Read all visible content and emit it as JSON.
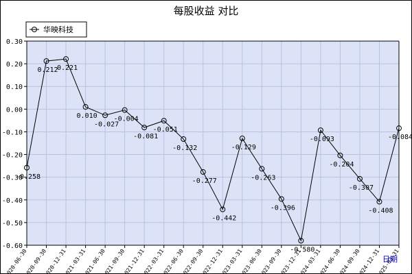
{
  "chart_data": {
    "type": "line",
    "title": "每股收益 对比",
    "xlabel": "日期",
    "ylabel": "",
    "ylim": [
      -0.6,
      0.3
    ],
    "yticks": [
      "0.30",
      "0.20",
      "0.10",
      "0.00",
      "-0.10",
      "-0.20",
      "-0.30",
      "-0.40",
      "-0.50",
      "-0.60"
    ],
    "grid": true,
    "legend_position": "top-left",
    "categories": [
      "2020-06-30",
      "2020-09-30",
      "2020-12-31",
      "2021-03-31",
      "2021-06-30",
      "2021-09-30",
      "2021-12-31",
      "2022-03-31",
      "2022-06-30",
      "2022-09-30",
      "2022-12-31",
      "2023-03-31",
      "2023-06-30",
      "2023-09-30",
      "2023-12-31",
      "2024-03-31",
      "2024-06-30",
      "2024-09-30",
      "2024-12-31",
      "2025-03-31"
    ],
    "series": [
      {
        "name": "华映科技",
        "color": "#000000",
        "values": [
          -0.258,
          0.212,
          0.221,
          0.01,
          -0.027,
          -0.004,
          -0.081,
          -0.051,
          -0.132,
          -0.277,
          -0.442,
          -0.129,
          -0.263,
          -0.396,
          -0.58,
          -0.093,
          -0.204,
          -0.307,
          -0.408,
          -0.084
        ],
        "labels": [
          "-0.258",
          "0.212",
          "0.221",
          "0.010",
          "-0.027",
          "-0.004",
          "-0.081",
          "-0.051",
          "-0.132",
          "-0.277",
          "-0.442",
          "-0.129",
          "-0.263",
          "-0.396",
          "-0.580",
          "-0.093",
          "-0.204",
          "-0.307",
          "-0.408",
          "-0.084"
        ]
      }
    ],
    "colors": {
      "plot_background": "#dde3f7",
      "grid": "#b8c2e0",
      "line": "#000000",
      "xlabel": "#0000cc"
    }
  }
}
